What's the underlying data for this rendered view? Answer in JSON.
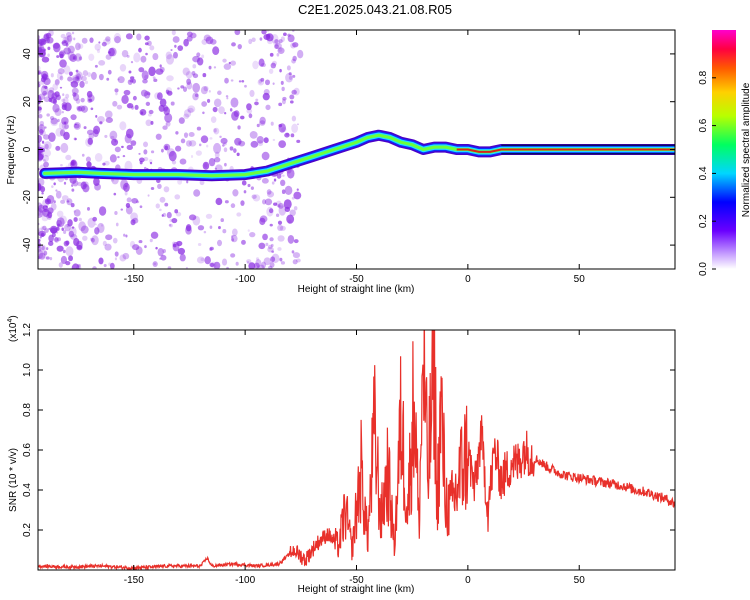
{
  "title": "C2E1.2025.043.21.08.R05",
  "colors": {
    "snr_line": "#e8302a",
    "ridge_core": "#d4241f",
    "scatter": "#8a2be2"
  },
  "chart_data": [
    {
      "type": "heatmap",
      "title": "C2E1.2025.043.21.08.R05",
      "xlabel": "Height of straight line (km)",
      "ylabel": "Frequency (Hz)",
      "xlim": [
        -193,
        93
      ],
      "ylim": [
        -50,
        50
      ],
      "x_ticks": [
        -150,
        -100,
        -50,
        0,
        50
      ],
      "y_ticks": [
        -40,
        -20,
        0,
        20,
        40
      ],
      "ridge": {
        "x": [
          -190,
          -175,
          -165,
          -150,
          -130,
          -115,
          -100,
          -90,
          -80,
          -70,
          -60,
          -50,
          -45,
          -40,
          -35,
          -30,
          -25,
          -20,
          -15,
          -10,
          -5,
          0,
          5,
          10,
          15,
          93
        ],
        "y": [
          -10,
          -9.5,
          -10,
          -10.5,
          -10.5,
          -11,
          -10.5,
          -9,
          -6,
          -3,
          0,
          3,
          5,
          6,
          5,
          3,
          2,
          0,
          1,
          1,
          0,
          0,
          -1,
          -1,
          0,
          0
        ]
      },
      "colorbar": {
        "label": "Normalized spectral amplitude",
        "range": [
          0,
          1
        ],
        "ticks": [
          0.0,
          0.2,
          0.4,
          0.6,
          0.8
        ]
      }
    },
    {
      "type": "line",
      "xlabel": "Height of straight line (km)",
      "ylabel": "SNR (10 * v/v)",
      "y_multiplier": "(x10",
      "y_multiplier_exp": "4",
      "xlim": [
        -193,
        93
      ],
      "ylim": [
        0,
        1.2
      ],
      "x_ticks": [
        -150,
        -100,
        -50,
        0,
        50
      ],
      "y_ticks": [
        0.2,
        0.4,
        0.6,
        0.8,
        1.0,
        1.2
      ],
      "series": [
        {
          "x": [
            -193,
            -180,
            -165,
            -150,
            -135,
            -120,
            -117,
            -115,
            -105,
            -95,
            -85,
            -78,
            -73,
            -68,
            -63,
            -58,
            -55,
            -52,
            -48,
            -45,
            -42,
            -39,
            -36,
            -33,
            -30,
            -27,
            -24,
            -22,
            -20,
            -18,
            -16,
            -15,
            -14,
            -12,
            -10,
            -8,
            -5,
            -3,
            0,
            3,
            6,
            9,
            12,
            15,
            18,
            20,
            22,
            25,
            28,
            30,
            35,
            40,
            45,
            50,
            55,
            60,
            65,
            70,
            75,
            80,
            85,
            90,
            93
          ],
          "y": [
            0.02,
            0.015,
            0.02,
            0.01,
            0.02,
            0.02,
            0.06,
            0.02,
            0.03,
            0.02,
            0.03,
            0.1,
            0.05,
            0.13,
            0.18,
            0.12,
            0.3,
            0.1,
            0.5,
            0.15,
            0.7,
            0.25,
            0.5,
            0.12,
            0.75,
            0.3,
            0.9,
            0.2,
            1.1,
            0.45,
            0.85,
            1.2,
            0.3,
            0.8,
            0.35,
            0.3,
            0.4,
            0.5,
            0.6,
            0.4,
            0.68,
            0.3,
            0.6,
            0.45,
            0.5,
            0.55,
            0.52,
            0.6,
            0.58,
            0.56,
            0.52,
            0.49,
            0.47,
            0.46,
            0.45,
            0.44,
            0.43,
            0.42,
            0.4,
            0.39,
            0.37,
            0.35,
            0.33
          ]
        }
      ]
    }
  ]
}
